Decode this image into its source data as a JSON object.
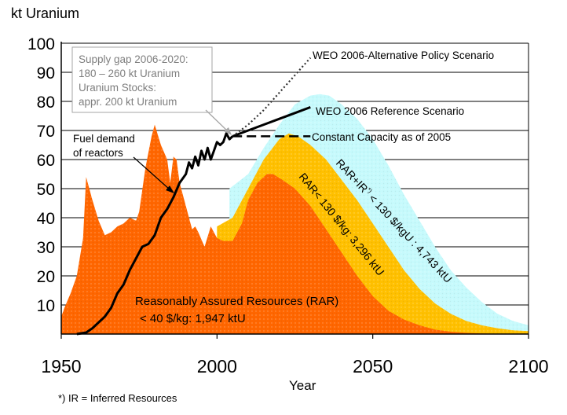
{
  "chart_data": {
    "type": "area",
    "ylabel": "kt Uranium",
    "xlabel": "Year",
    "xlim": [
      1950,
      2100
    ],
    "ylim": [
      0,
      100
    ],
    "x_ticks": [
      "1950",
      "2000",
      "2050",
      "2100"
    ],
    "y_ticks": [
      "10",
      "20",
      "30",
      "40",
      "50",
      "60",
      "70",
      "80",
      "90",
      "100"
    ],
    "grid": "horizontal",
    "footnote": "*) IR = Inferred Resources",
    "annotations": {
      "supply_gap": [
        "Supply gap 2006-2020:",
        "180 – 260 kt Uranium",
        "Uranium Stocks:",
        "appr. 200 kt Uranium"
      ],
      "fuel_demand": [
        "Fuel demand",
        "of reactors"
      ],
      "alt_policy": "WEO 2006-Alternative Policy Scenario",
      "reference": "WEO 2006 Reference Scenario",
      "constant": "Constant Capacity as of 2005",
      "rar_ir": [
        "RAR+IR",
        "*)",
        " < 130 $/kgU : 4,743 ktU"
      ],
      "rar130": "RAR< 130 $/kg: 3,296 ktU",
      "rar40": [
        "Reasonably Assured Resources (RAR)",
        "< 40 $/kg: 1,947 ktU"
      ]
    },
    "colors": {
      "rar40": "#ff6600",
      "rar130": "#ffc000",
      "rar_ir": "#c6fafc",
      "demand": "#000000",
      "grid": "#000000"
    },
    "series": [
      {
        "name": "RAR+IR < 130 $/kgU",
        "x": [
          2004,
          2010,
          2015,
          2020,
          2025,
          2030,
          2033,
          2036,
          2040,
          2045,
          2050,
          2055,
          2060,
          2065,
          2070,
          2075,
          2080,
          2085,
          2090,
          2095,
          2100
        ],
        "values": [
          50,
          55,
          64,
          72,
          79,
          82,
          82.5,
          82,
          79,
          74,
          67,
          58,
          48,
          39,
          30,
          22,
          16,
          11,
          7,
          4.5,
          3
        ]
      },
      {
        "name": "RAR < 130 $/kg",
        "x": [
          2000,
          2005,
          2010,
          2015,
          2020,
          2023,
          2026,
          2030,
          2035,
          2040,
          2045,
          2050,
          2055,
          2060,
          2065,
          2070,
          2075,
          2080,
          2085,
          2090,
          2095,
          2100
        ],
        "values": [
          37,
          40,
          50,
          60,
          67,
          69,
          68,
          65,
          60,
          53,
          46,
          38,
          30,
          22,
          15.5,
          10.5,
          7,
          4.5,
          3,
          2,
          1.3,
          1
        ]
      },
      {
        "name": "RAR < 40 $/kg",
        "x": [
          1950,
          1951,
          1953,
          1955,
          1957,
          1958,
          1960,
          1962,
          1964,
          1966,
          1968,
          1970,
          1972,
          1974,
          1975,
          1977,
          1979,
          1980,
          1982,
          1984,
          1985,
          1986,
          1987,
          1988,
          1990,
          1992,
          1993,
          1994,
          1996,
          1998,
          2000,
          2002,
          2005,
          2008,
          2010,
          2013,
          2016,
          2018,
          2021,
          2025,
          2030,
          2035,
          2040,
          2045,
          2050,
          2055,
          2060,
          2065,
          2070,
          2075,
          2080,
          2085,
          2090,
          2095,
          2100
        ],
        "values": [
          6,
          9,
          14,
          20,
          33,
          54,
          46,
          39,
          34,
          35,
          37,
          38,
          40,
          39,
          42,
          57,
          68,
          72,
          65,
          60,
          52,
          61,
          60,
          52,
          44,
          36,
          37,
          35,
          30,
          37,
          33,
          32,
          32,
          38,
          46,
          52,
          55,
          55,
          53,
          50,
          44,
          36,
          28,
          20,
          13,
          8,
          5,
          3,
          1.5,
          0.8,
          0.4,
          0.2,
          0.1,
          0,
          0
        ]
      },
      {
        "name": "Fuel demand of reactors",
        "x": [
          1955,
          1958,
          1960,
          1962,
          1964,
          1966,
          1968,
          1970,
          1972,
          1974,
          1976,
          1978,
          1980,
          1982,
          1984,
          1986,
          1988,
          1990,
          1991,
          1992,
          1993,
          1994,
          1995,
          1996,
          1997,
          1998,
          1999,
          2000,
          2001,
          2002,
          2003,
          2004,
          2005
        ],
        "values": [
          0,
          0.5,
          2,
          4,
          6,
          9,
          14,
          17,
          22,
          26,
          30,
          31,
          34,
          40,
          43,
          47,
          52,
          55,
          59,
          57,
          61,
          58,
          63,
          60,
          64,
          60,
          63,
          66,
          65,
          66,
          69,
          67,
          68
        ]
      },
      {
        "name": "WEO 2006 Reference Scenario",
        "x": [
          2005,
          2010,
          2015,
          2020,
          2025,
          2030
        ],
        "values": [
          68,
          70,
          72,
          74,
          76,
          78
        ]
      },
      {
        "name": "WEO 2006-Alternative Policy Scenario",
        "x": [
          2005,
          2010,
          2015,
          2020,
          2025,
          2030
        ],
        "values": [
          68,
          72,
          77,
          83,
          89,
          95
        ]
      },
      {
        "name": "Constant Capacity as of 2005",
        "x": [
          2005,
          2030
        ],
        "values": [
          68,
          68
        ]
      }
    ]
  }
}
